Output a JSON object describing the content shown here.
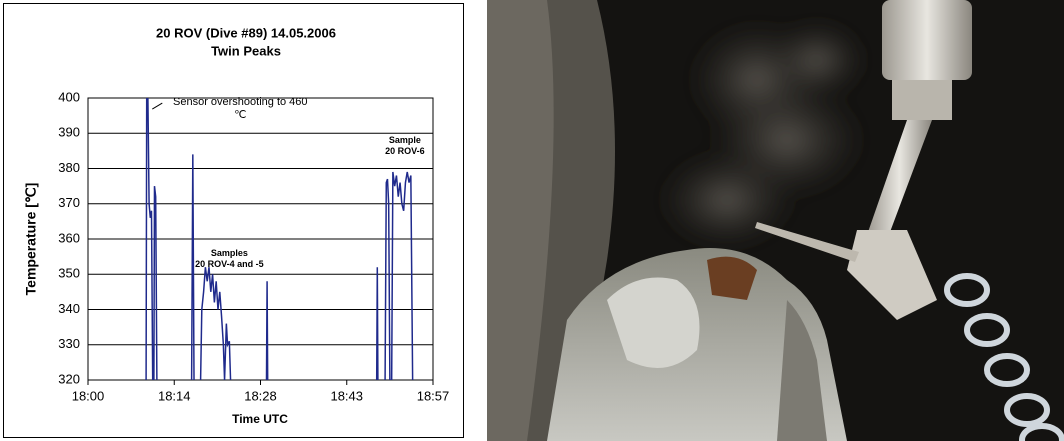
{
  "chart_data": {
    "type": "line",
    "title": "20 ROV  (Dive #89) 14.05.2006",
    "subtitle": "Twin Peaks",
    "x_label": "Time UTC",
    "y_label": "Temperature  [℃]",
    "x": [
      9.7,
      9.8,
      10.0,
      10.2,
      10.4,
      10.6,
      10.8,
      11.0,
      11.1,
      11.3,
      11.5,
      null,
      17.3,
      17.5,
      17.7,
      null,
      18.8,
      19.0,
      19.3,
      19.6,
      19.9,
      20.2,
      20.5,
      20.8,
      21.1,
      21.4,
      21.7,
      22.0,
      22.3,
      22.6,
      22.8,
      23.1,
      23.3,
      23.6,
      23.8,
      null,
      29.8,
      29.9,
      30.0,
      null,
      48.2,
      48.3,
      48.4,
      null,
      49.6,
      49.8,
      50.0,
      50.2,
      50.4,
      50.7,
      50.9,
      51.2,
      51.5,
      51.8,
      52.1,
      52.4,
      52.7,
      53.0,
      53.3,
      53.6,
      53.9,
      54.2
    ],
    "series": [
      {
        "name": "Temperature",
        "color": "#1f2a8c",
        "values": [
          320,
          400,
          400,
          370,
          366,
          368,
          320,
          320,
          375,
          372,
          320,
          null,
          320,
          384,
          320,
          null,
          320,
          340,
          345,
          352,
          348,
          352,
          345,
          350,
          342,
          348,
          340,
          345,
          338,
          330,
          320,
          336,
          330,
          331,
          320,
          null,
          320,
          348,
          320,
          null,
          320,
          352,
          320,
          null,
          320,
          376,
          377,
          370,
          320,
          320,
          379,
          375,
          378,
          372,
          376,
          370,
          368,
          376,
          379,
          376,
          378,
          320
        ]
      }
    ],
    "xlim": [
      0,
      57.6
    ],
    "xticks": [
      {
        "value": 0,
        "label": "18:00"
      },
      {
        "value": 14.4,
        "label": "18:14"
      },
      {
        "value": 28.8,
        "label": "18:28"
      },
      {
        "value": 43.2,
        "label": "18:43"
      },
      {
        "value": 57.6,
        "label": "18:57"
      }
    ],
    "ylim": [
      320,
      400
    ],
    "yticks": [
      320,
      330,
      340,
      350,
      360,
      370,
      380,
      390,
      400
    ],
    "grid": true,
    "annotations": [
      {
        "text": "Sensor overshooting to 460\n℃",
        "x": 10.4,
        "y": 398
      },
      {
        "text": "Samples\n20 ROV-4 and -5",
        "x": 23.6,
        "y": 354
      },
      {
        "text": "Sample\n20 ROV-6",
        "x": 52.9,
        "y": 386
      }
    ]
  }
}
